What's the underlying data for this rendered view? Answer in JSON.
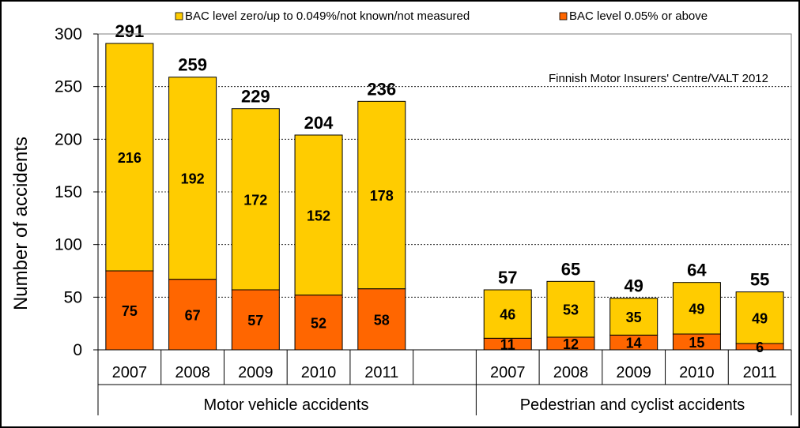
{
  "chart_data": {
    "type": "bar",
    "stacked": true,
    "ylabel": "Number of accidents",
    "ylim": [
      0,
      300
    ],
    "yticks": [
      0,
      50,
      100,
      150,
      200,
      250,
      300
    ],
    "grid": true,
    "legend_position": "top",
    "annotation": "Finnish Motor Insurers' Centre/VALT 2012",
    "groups": [
      {
        "label": "Motor vehicle accidents",
        "categories": [
          "2007",
          "2008",
          "2009",
          "2010",
          "2011"
        ]
      },
      {
        "label": "Pedestrian and cyclist accidents",
        "categories": [
          "2007",
          "2008",
          "2009",
          "2010",
          "2011"
        ]
      }
    ],
    "series": [
      {
        "name": "BAC level 0.05% or above",
        "color": "#ff6600",
        "values": [
          75,
          67,
          57,
          52,
          58,
          11,
          12,
          14,
          15,
          6
        ]
      },
      {
        "name": "BAC level zero/up to 0.049%/not known/not measured",
        "color": "#ffcc00",
        "values": [
          216,
          192,
          172,
          152,
          178,
          46,
          53,
          35,
          49,
          49
        ]
      }
    ],
    "totals": [
      291,
      259,
      229,
      204,
      236,
      57,
      65,
      49,
      64,
      55
    ]
  }
}
